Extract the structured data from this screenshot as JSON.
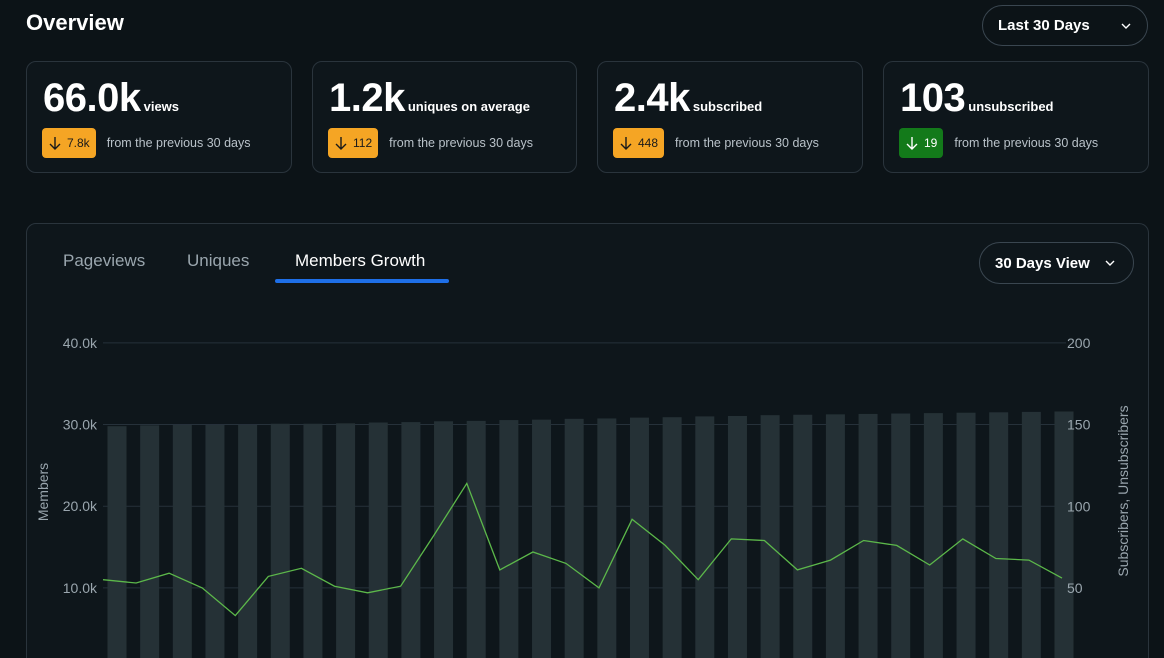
{
  "header": {
    "title": "Overview",
    "range_label": "Last 30 Days"
  },
  "stats": [
    {
      "value": "66.0k",
      "unit": "views",
      "delta": "7.8k",
      "direction": "down",
      "tone": "warning",
      "note": "from the previous 30 days"
    },
    {
      "value": "1.2k",
      "unit": "uniques on average",
      "delta": "112",
      "direction": "down",
      "tone": "warning",
      "note": "from the previous 30 days"
    },
    {
      "value": "2.4k",
      "unit": "subscribed",
      "delta": "448",
      "direction": "down",
      "tone": "warning",
      "note": "from the previous 30 days"
    },
    {
      "value": "103",
      "unit": "unsubscribed",
      "delta": "19",
      "direction": "down",
      "tone": "positive",
      "note": "from the previous 30 days"
    }
  ],
  "tabs": [
    {
      "label": "Pageviews",
      "active": false
    },
    {
      "label": "Uniques",
      "active": false
    },
    {
      "label": "Members Growth",
      "active": true
    }
  ],
  "view_label": "30 Days View",
  "colors": {
    "warning": "#f5a524",
    "positive": "#137a1a",
    "accent": "#1e6fe8",
    "bar": "#253136",
    "line": "#5cb84a"
  },
  "chart_data": {
    "type": "bar+line",
    "left_axis": {
      "label": "Members",
      "ticks": [
        "10.0k",
        "20.0k",
        "30.0k",
        "40.0k"
      ],
      "values": [
        10000,
        20000,
        30000,
        40000
      ]
    },
    "right_axis": {
      "label": "Subscribers, Unsubscribers",
      "ticks": [
        "50",
        "100",
        "150",
        "200"
      ],
      "values": [
        50,
        100,
        150,
        200
      ]
    },
    "grid": true,
    "series": [
      {
        "type": "bar",
        "axis": "left",
        "values": [
          29800,
          29900,
          29950,
          29950,
          29950,
          30100,
          30100,
          30150,
          30250,
          30300,
          30400,
          30450,
          30550,
          30600,
          30700,
          30750,
          30850,
          30900,
          31000,
          31050,
          31150,
          31200,
          31250,
          31300,
          31350,
          31400,
          31450,
          31500,
          31550,
          31600
        ]
      },
      {
        "type": "line",
        "axis": "right",
        "values": [
          55,
          53,
          59,
          50,
          33,
          57,
          62,
          51,
          47,
          51,
          82,
          114,
          61,
          72,
          65,
          50,
          92,
          76,
          55,
          80,
          79,
          61,
          67,
          79,
          76,
          64,
          80,
          68,
          67,
          56
        ]
      }
    ]
  }
}
